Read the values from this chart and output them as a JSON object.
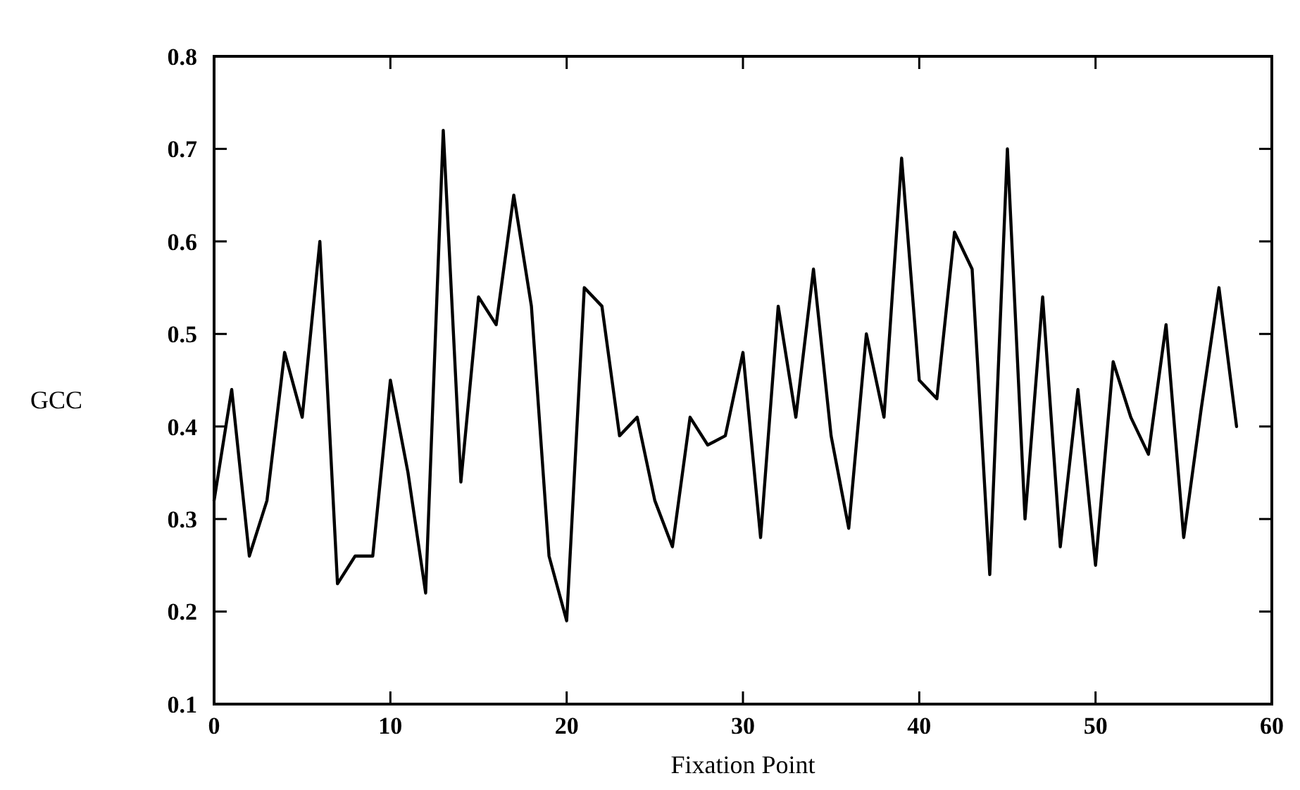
{
  "chart_data": {
    "type": "line",
    "xlabel": "Fixation Point",
    "ylabel": "GCC",
    "x": [
      0,
      1,
      2,
      3,
      4,
      5,
      6,
      7,
      8,
      9,
      10,
      11,
      12,
      13,
      14,
      15,
      16,
      17,
      18,
      19,
      20,
      21,
      22,
      23,
      24,
      25,
      26,
      27,
      28,
      29,
      30,
      31,
      32,
      33,
      34,
      35,
      36,
      37,
      38,
      39,
      40,
      41,
      42,
      43,
      44,
      45,
      46,
      47,
      48,
      49,
      50,
      51,
      52,
      53,
      54,
      55,
      56,
      57,
      58
    ],
    "series": [
      {
        "color": "#000000",
        "values": [
          0.32,
          0.44,
          0.26,
          0.32,
          0.48,
          0.41,
          0.6,
          0.23,
          0.26,
          0.26,
          0.45,
          0.35,
          0.22,
          0.72,
          0.34,
          0.54,
          0.51,
          0.65,
          0.53,
          0.26,
          0.19,
          0.55,
          0.53,
          0.39,
          0.41,
          0.32,
          0.27,
          0.41,
          0.38,
          0.39,
          0.48,
          0.28,
          0.53,
          0.41,
          0.57,
          0.39,
          0.29,
          0.5,
          0.41,
          0.69,
          0.45,
          0.43,
          0.61,
          0.57,
          0.24,
          0.7,
          0.3,
          0.54,
          0.27,
          0.44,
          0.25,
          0.47,
          0.41,
          0.37,
          0.51,
          0.28,
          0.42,
          0.55,
          0.4
        ]
      }
    ],
    "xlim": [
      0,
      60
    ],
    "xticks": [
      0,
      10,
      20,
      30,
      40,
      50,
      60
    ],
    "ylim": [
      0.1,
      0.8
    ],
    "yticks": [
      {
        "value": 0.1,
        "label": "0.1"
      },
      {
        "value": 0.2,
        "label": "0.2"
      },
      {
        "value": 0.3,
        "label": "0.3"
      },
      {
        "value": 0.4,
        "label": "0.4"
      },
      {
        "value": 0.5,
        "label": "0.5"
      },
      {
        "value": 0.6,
        "label": "0.6"
      },
      {
        "value": 0.7,
        "label": "0.7"
      },
      {
        "value": 0.8,
        "label": "0.8"
      }
    ],
    "grid": false,
    "marker": "none",
    "line_style": "solid"
  }
}
